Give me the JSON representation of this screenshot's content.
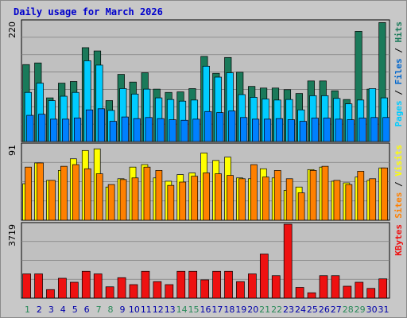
{
  "chart_data": {
    "type": "bar",
    "title": "Daily usage for March 2026",
    "x": [
      1,
      2,
      3,
      4,
      5,
      6,
      7,
      8,
      9,
      10,
      11,
      12,
      13,
      14,
      15,
      16,
      17,
      18,
      19,
      20,
      21,
      22,
      23,
      24,
      25,
      26,
      27,
      28,
      29,
      30,
      31
    ],
    "weekend_days": [
      1,
      7,
      8,
      14,
      15,
      21,
      22,
      28,
      29
    ],
    "colors": {
      "hits": "#1a7a5a",
      "files": "#00ccff",
      "pages": "#0080ff",
      "sites": "#ff8000",
      "visits": "#ffff00",
      "kbytes": "#ee1111",
      "weekend_label": "#2a8a5a",
      "weekday_label": "#0000aa",
      "title": "#0000cc"
    },
    "panels": [
      {
        "scale_max": 220,
        "scale_label": "220",
        "legend": [
          {
            "label": "Pages",
            "color": "#00ccff"
          },
          {
            "label": "Files",
            "color": "#0066cc"
          },
          {
            "label": "Hits",
            "color": "#1a7a5a"
          }
        ],
        "series": [
          {
            "name": "Hits",
            "key": "hits",
            "values": [
              141,
              144,
              80,
              107,
              110,
              172,
              166,
              75,
              123,
              109,
              126,
              96,
              90,
              91,
              97,
              156,
              125,
              154,
              127,
              101,
              98,
              98,
              95,
              88,
              111,
              111,
              93,
              77,
              202,
              96,
              218
            ]
          },
          {
            "name": "Files",
            "key": "files",
            "values": [
              90,
              107,
              75,
              83,
              90,
              148,
              140,
              57,
              97,
              87,
              96,
              80,
              77,
              74,
              76,
              138,
              118,
              126,
              86,
              81,
              78,
              76,
              77,
              58,
              84,
              84,
              79,
              69,
              76,
              97,
              80
            ]
          },
          {
            "name": "Pages",
            "key": "pages",
            "values": [
              48,
              50,
              41,
              41,
              43,
              58,
              60,
              37,
              45,
              42,
              44,
              42,
              40,
              39,
              41,
              55,
              53,
              56,
              44,
              41,
              41,
              42,
              40,
              37,
              43,
              43,
              41,
              40,
              43,
              44,
              44
            ]
          }
        ]
      },
      {
        "scale_max": 91,
        "scale_label": "91",
        "legend": [
          {
            "label": "Sites",
            "color": "#ff8000"
          },
          {
            "label": "Visits",
            "color": "#ffff00"
          }
        ],
        "series": [
          {
            "name": "Visits",
            "key": "visits",
            "values": [
              44,
              69,
              48,
              60,
              74,
              84,
              86,
              40,
              50,
              64,
              67,
              51,
              47,
              55,
              57,
              81,
              72,
              76,
              51,
              50,
              62,
              51,
              36,
              40,
              61,
              64,
              47,
              45,
              52,
              48,
              63
            ]
          },
          {
            "name": "Sites",
            "key": "sites",
            "values": [
              64,
              69,
              48,
              65,
              67,
              62,
              56,
              43,
              49,
              51,
              64,
              60,
              42,
              46,
              53,
              57,
              56,
              54,
              50,
              67,
              52,
              60,
              50,
              33,
              60,
              65,
              48,
              43,
              59,
              50,
              63
            ]
          }
        ]
      },
      {
        "scale_max": 3719,
        "scale_label": "3719",
        "legend": [
          {
            "label": "KBytes",
            "color": "#ee1111"
          }
        ],
        "series": [
          {
            "name": "KBytes",
            "key": "kbytes",
            "values": [
              1220,
              1220,
              430,
              1000,
              800,
              1350,
              1220,
              570,
              1030,
              680,
              1350,
              830,
              680,
              1350,
              1350,
              920,
              1350,
              1350,
              830,
              1220,
              2220,
              1130,
              3719,
              540,
              270,
              1130,
              1130,
              600,
              800,
              490,
              970
            ]
          }
        ]
      }
    ]
  }
}
